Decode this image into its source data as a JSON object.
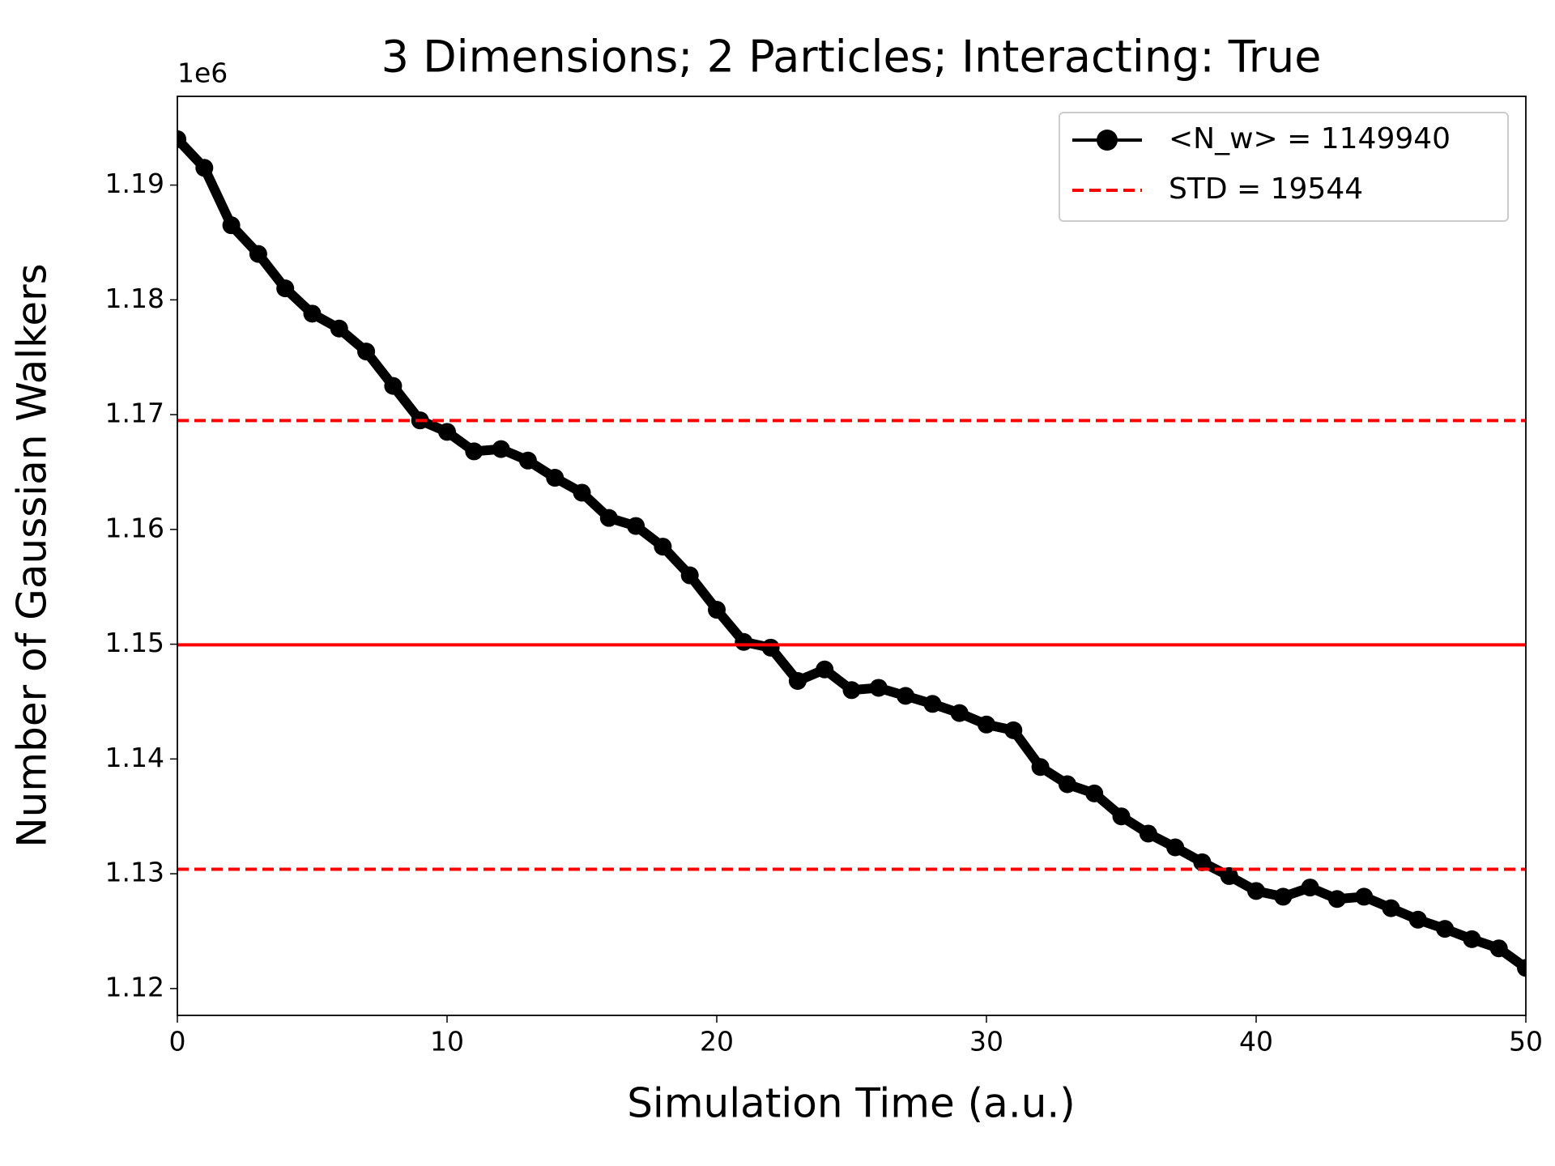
{
  "chart_data": {
    "type": "line",
    "title": "3 Dimensions; 2 Particles; Interacting: True",
    "x_label": "Simulation Time (a.u.)",
    "y_label": "Number of Gaussian Walkers",
    "y_offset_label": "1e6",
    "x": [
      0,
      1,
      2,
      3,
      4,
      5,
      6,
      7,
      8,
      9,
      10,
      11,
      12,
      13,
      14,
      15,
      16,
      17,
      18,
      19,
      20,
      21,
      22,
      23,
      24,
      25,
      26,
      27,
      28,
      29,
      30,
      31,
      32,
      33,
      34,
      35,
      36,
      37,
      38,
      39,
      40,
      41,
      42,
      43,
      44,
      45,
      46,
      47,
      48,
      49,
      50
    ],
    "series": [
      {
        "name": "<N_w> = 1149940",
        "color": "#000000",
        "values": [
          1194000,
          1191500,
          1186500,
          1184000,
          1181000,
          1178800,
          1177500,
          1175500,
          1172500,
          1169500,
          1168500,
          1166800,
          1167000,
          1166000,
          1164500,
          1163200,
          1161000,
          1160300,
          1158500,
          1156000,
          1153000,
          1150200,
          1149700,
          1146800,
          1147800,
          1146000,
          1146200,
          1145500,
          1144800,
          1144000,
          1143000,
          1142500,
          1139300,
          1137800,
          1137000,
          1135000,
          1133500,
          1132300,
          1131000,
          1129800,
          1128500,
          1128000,
          1128800,
          1127800,
          1128000,
          1127000,
          1126000,
          1125200,
          1124300,
          1123500,
          1121800
        ]
      }
    ],
    "reference_lines": {
      "mean": 1149940,
      "std": 19544,
      "std_name": "STD = 19544",
      "color": "#ff0000"
    },
    "xlim": [
      0,
      50
    ],
    "xticks": [
      0,
      10,
      20,
      30,
      40,
      50
    ],
    "ylim": [
      1117660,
      1197730
    ],
    "yticks": [
      {
        "value": 1120000,
        "label": "1.12"
      },
      {
        "value": 1130000,
        "label": "1.13"
      },
      {
        "value": 1140000,
        "label": "1.14"
      },
      {
        "value": 1150000,
        "label": "1.15"
      },
      {
        "value": 1160000,
        "label": "1.16"
      },
      {
        "value": 1170000,
        "label": "1.17"
      },
      {
        "value": 1180000,
        "label": "1.18"
      },
      {
        "value": 1190000,
        "label": "1.19"
      }
    ],
    "legend": "upper right",
    "grid": false
  }
}
